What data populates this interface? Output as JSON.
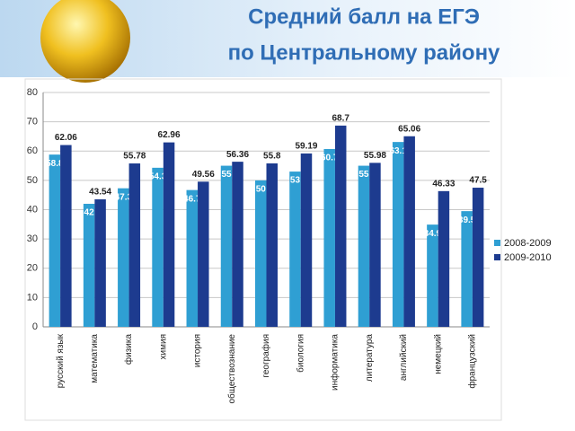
{
  "chart_data": {
    "type": "bar",
    "title_lines": [
      "Средний балл на ЕГЭ",
      "по Центральному району"
    ],
    "categories": [
      "русский язык",
      "математика",
      "физика",
      "химия",
      "история",
      "обществознание",
      "география",
      "биология",
      "информатика",
      "литература",
      "английский",
      "немецкий",
      "французский"
    ],
    "series": [
      {
        "name": "2008-2009",
        "color": "#2f9fd3",
        "values": [
          58.8,
          42,
          47.3,
          54.3,
          46.7,
          55,
          50,
          53,
          60.7,
          55,
          63.1,
          34.9,
          39.5
        ]
      },
      {
        "name": "2009-2010",
        "color": "#1d3b8f",
        "values": [
          62.06,
          43.54,
          55.78,
          62.96,
          49.56,
          56.36,
          55.8,
          59.19,
          68.7,
          55.98,
          65.06,
          46.33,
          47.5
        ]
      }
    ],
    "ylim": [
      0,
      80
    ],
    "yticks": [
      0,
      10,
      20,
      30,
      40,
      50,
      60,
      70,
      80
    ],
    "grid": true,
    "legend": "right"
  }
}
